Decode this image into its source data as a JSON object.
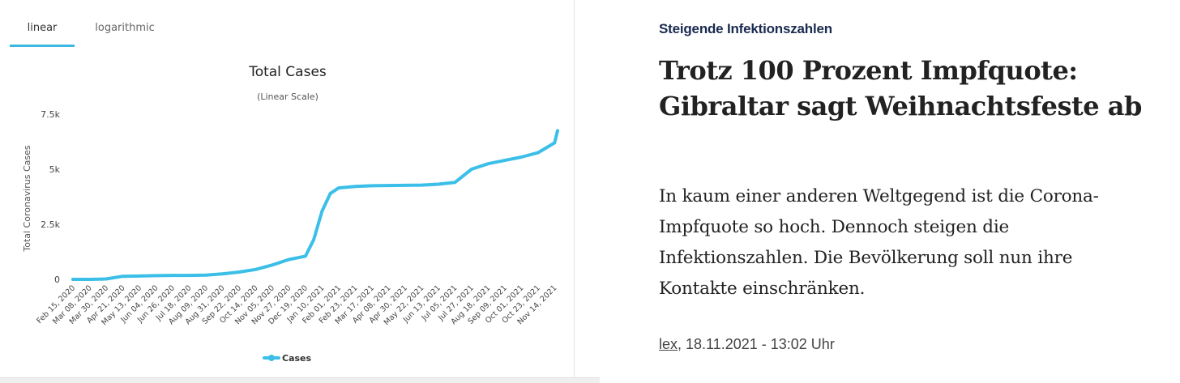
{
  "tabs": [
    {
      "label": "linear"
    },
    {
      "label": "logarithmic"
    }
  ],
  "chart_data": {
    "type": "line",
    "title": "Total Cases",
    "subtitle": "(Linear Scale)",
    "ylabel": "Total Coronavirus Cases",
    "xlabel": "",
    "ylim": [
      0,
      7500
    ],
    "yticks": [
      0,
      2500,
      5000,
      7500
    ],
    "ytick_labels": [
      "0",
      "2.5k",
      "5k",
      "7.5k"
    ],
    "legend": "bottom-center",
    "grid": false,
    "x_tick_labels": [
      "Feb 15, 2020",
      "Mar 08, 2020",
      "Mar 30, 2020",
      "Apr 21, 2020",
      "May 13, 2020",
      "Jun 04, 2020",
      "Jun 26, 2020",
      "Jul 18, 2020",
      "Aug 09, 2020",
      "Aug 31, 2020",
      "Sep 22, 2020",
      "Oct 14, 2020",
      "Nov 05, 2020",
      "Nov 27, 2020",
      "Dec 19, 2020",
      "Jan 10, 2021",
      "Feb 01, 2021",
      "Feb 23, 2021",
      "Mar 17, 2021",
      "Apr 08, 2021",
      "Apr 30, 2021",
      "May 22, 2021",
      "Jun 13, 2021",
      "Jul 05, 2021",
      "Jul 27, 2021",
      "Aug 18, 2021",
      "Sep 09, 2021",
      "Oct 01, 2021",
      "Oct 23, 2021",
      "Nov 14, 2021"
    ],
    "series": [
      {
        "name": "Cases",
        "color": "#3bbfe8",
        "x": [
          "Feb 15, 2020",
          "Mar 08, 2020",
          "Mar 30, 2020",
          "Apr 21, 2020",
          "May 13, 2020",
          "Jun 04, 2020",
          "Jun 26, 2020",
          "Jul 18, 2020",
          "Aug 09, 2020",
          "Aug 31, 2020",
          "Sep 22, 2020",
          "Oct 14, 2020",
          "Nov 05, 2020",
          "Nov 27, 2020",
          "Dec 19, 2020",
          "Dec 30, 2020",
          "Jan 10, 2021",
          "Jan 21, 2021",
          "Feb 01, 2021",
          "Feb 23, 2021",
          "Mar 17, 2021",
          "Apr 08, 2021",
          "Apr 30, 2021",
          "May 22, 2021",
          "Jun 13, 2021",
          "Jul 05, 2021",
          "Jul 27, 2021",
          "Aug 18, 2021",
          "Sep 09, 2021",
          "Oct 01, 2021",
          "Oct 23, 2021",
          "Nov 14, 2021",
          "Nov 18, 2021"
        ],
        "values": [
          0,
          0,
          20,
          140,
          150,
          170,
          180,
          180,
          190,
          250,
          330,
          450,
          650,
          900,
          1050,
          1800,
          3100,
          3900,
          4150,
          4220,
          4250,
          4260,
          4270,
          4280,
          4320,
          4400,
          5000,
          5250,
          5400,
          5550,
          5750,
          6200,
          6750
        ]
      }
    ]
  },
  "article": {
    "kicker": "Steigende Infektionszahlen",
    "headline_line1": "Trotz 100 Prozent Impfquote:",
    "headline_line2": "Gibraltar sagt Weihnachtsfeste ab",
    "lead_line1": "In kaum einer anderen Weltgegend ist die Corona-",
    "lead_line2": "Impfquote so hoch. Dennoch steigen die",
    "lead_line3": "Infektionszahlen. Die Bevölkerung soll nun ihre",
    "lead_line4": "Kontakte einschränken.",
    "byline_author": "lex",
    "byline_rest": ", 18.11.2021 - 13:02 Uhr"
  }
}
